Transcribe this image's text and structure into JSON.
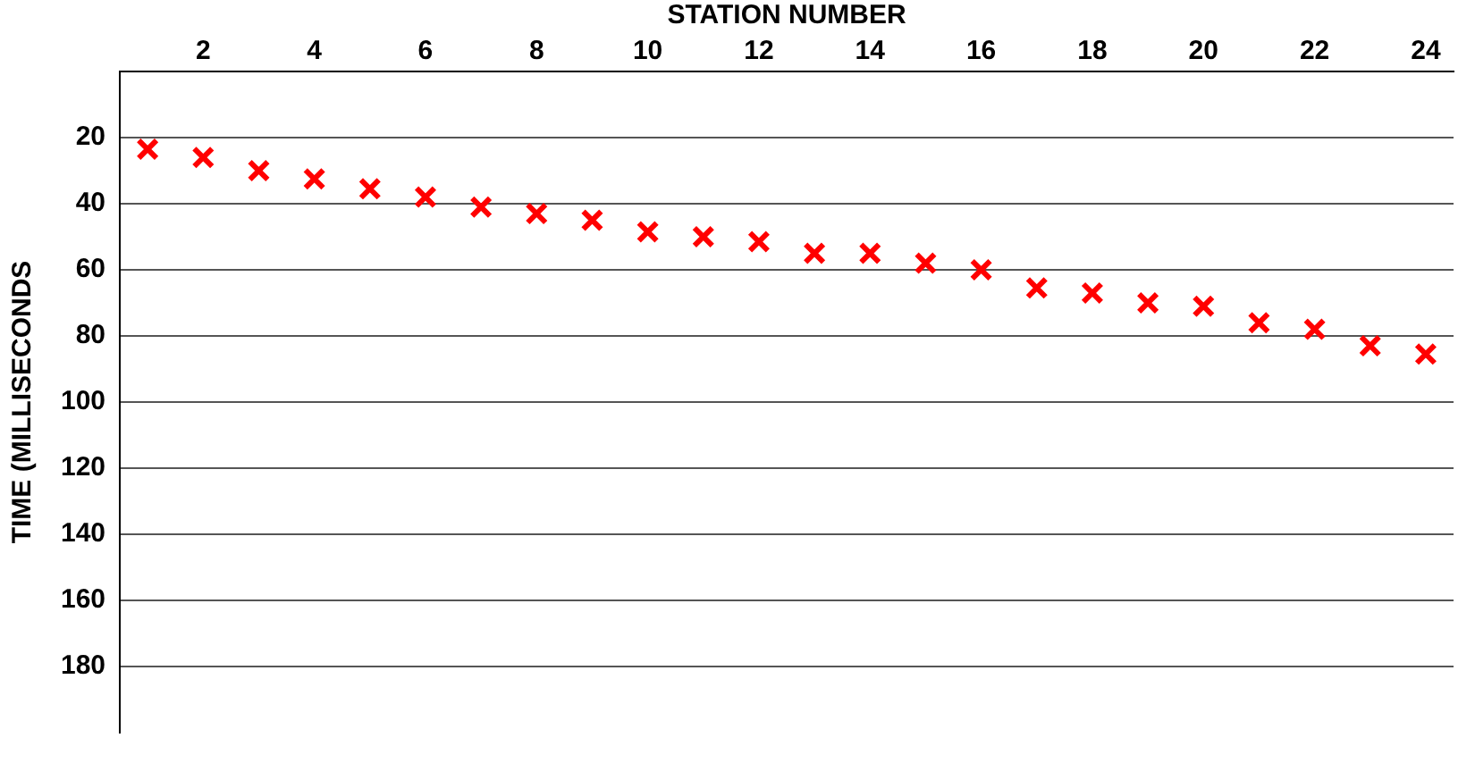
{
  "chart_data": {
    "type": "scatter",
    "xlabel": "STATION NUMBER",
    "ylabel": "TIME (MILLISECONDS",
    "x": [
      1,
      2,
      3,
      4,
      5,
      6,
      7,
      8,
      9,
      10,
      11,
      12,
      13,
      14,
      15,
      16,
      17,
      18,
      19,
      20,
      21,
      22,
      23,
      24
    ],
    "series": [
      {
        "color": "#ff0000",
        "values": [
          23.5,
          26,
          30,
          32.5,
          35.5,
          38,
          41,
          43,
          45,
          48.5,
          50,
          51.5,
          55,
          55,
          58,
          60,
          65.5,
          67,
          70,
          71,
          76,
          78,
          83,
          85.5
        ]
      }
    ],
    "xlim": [
      0.5,
      24.5
    ],
    "xticks": [
      2,
      4,
      6,
      8,
      10,
      12,
      14,
      16,
      18,
      20,
      22,
      24
    ],
    "ylim": [
      200,
      0
    ],
    "yticks": [
      20,
      40,
      60,
      80,
      100,
      120,
      140,
      160,
      180
    ],
    "grid": "y",
    "marker": "cross",
    "legend": false
  }
}
